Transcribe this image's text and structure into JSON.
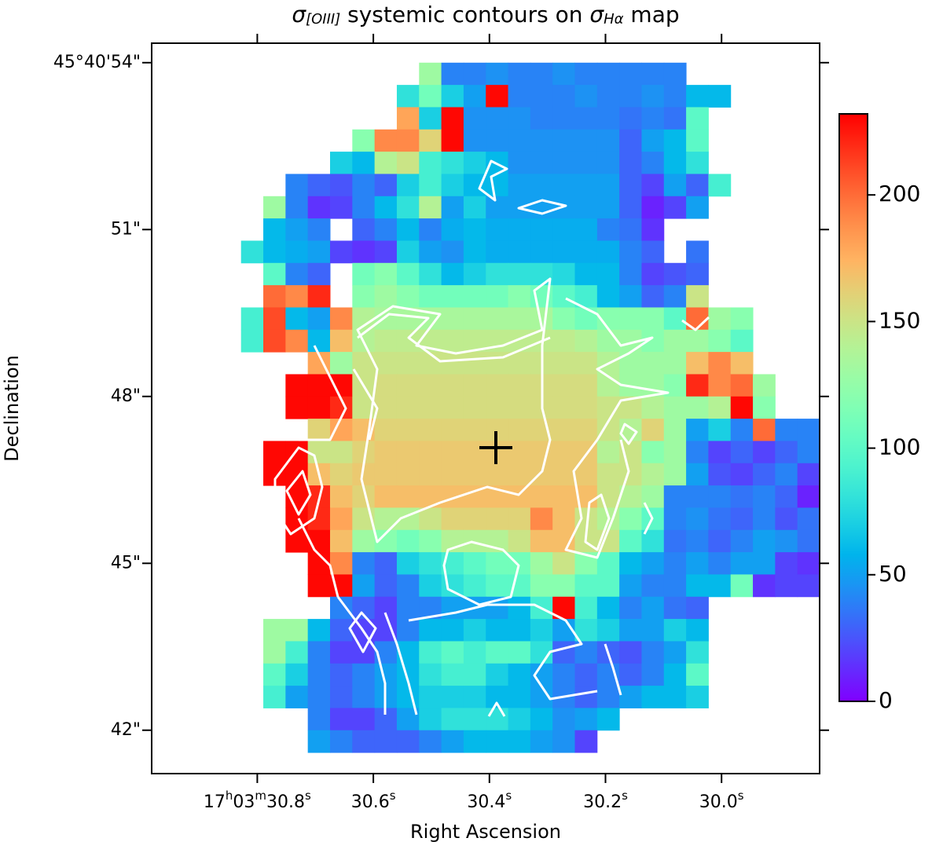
{
  "chart_data": {
    "type": "heatmap",
    "title": [
      "σ",
      "[OIII]",
      " systemic contours on ",
      "σ",
      "Hα",
      " map"
    ],
    "xlabel": "Right Ascension",
    "ylabel": "Declination",
    "xlim": [
      30.982,
      29.831
    ],
    "ylim": [
      41.22,
      54.35
    ],
    "xticks": [
      {
        "value": 30.8,
        "label": "17h03m30.8s"
      },
      {
        "value": 30.6,
        "label": "30.6s"
      },
      {
        "value": 30.4,
        "label": "30.4s"
      },
      {
        "value": 30.2,
        "label": "30.2s"
      },
      {
        "value": 30.0,
        "label": "30.0s"
      }
    ],
    "yticks": [
      {
        "value": 54,
        "label": "45°40'54\""
      },
      {
        "value": 51,
        "label": "51\""
      },
      {
        "value": 48,
        "label": "48\""
      },
      {
        "value": 45,
        "label": "45\""
      },
      {
        "value": 42,
        "label": "42\""
      }
    ],
    "extent": [
      30.828,
      29.831,
      41.6,
      54.0
    ],
    "colormap": "rainbow",
    "zlim": [
      0,
      232
    ],
    "zticks": [
      0,
      50,
      100,
      150,
      200
    ],
    "z": [
      [
        null,
        null,
        null,
        null,
        null,
        null,
        null,
        null,
        130,
        40,
        40,
        45,
        40,
        40,
        45,
        40,
        40,
        40,
        40,
        40,
        null,
        null,
        null,
        null,
        null,
        null
      ],
      [
        null,
        null,
        null,
        null,
        null,
        null,
        null,
        80,
        110,
        70,
        50,
        230,
        40,
        40,
        40,
        45,
        40,
        40,
        45,
        40,
        60,
        60,
        null,
        null,
        null,
        null
      ],
      [
        null,
        null,
        null,
        null,
        null,
        null,
        null,
        180,
        70,
        230,
        45,
        45,
        45,
        40,
        40,
        40,
        40,
        35,
        40,
        35,
        100,
        null,
        null,
        null,
        null,
        null
      ],
      [
        null,
        null,
        null,
        null,
        null,
        120,
        190,
        190,
        160,
        230,
        45,
        45,
        45,
        45,
        45,
        45,
        45,
        30,
        50,
        60,
        100,
        null,
        null,
        null,
        null,
        null
      ],
      [
        null,
        null,
        null,
        null,
        70,
        60,
        140,
        150,
        90,
        80,
        70,
        60,
        45,
        45,
        45,
        45,
        45,
        30,
        40,
        60,
        80,
        null,
        null,
        null,
        null,
        null
      ],
      [
        null,
        null,
        40,
        30,
        25,
        40,
        30,
        70,
        90,
        70,
        60,
        60,
        50,
        50,
        50,
        50,
        50,
        30,
        20,
        50,
        30,
        90,
        null,
        null,
        null,
        null
      ],
      [
        null,
        130,
        40,
        15,
        20,
        40,
        60,
        80,
        140,
        50,
        70,
        50,
        50,
        50,
        50,
        50,
        50,
        30,
        10,
        20,
        50,
        null,
        null,
        null,
        null,
        null
      ],
      [
        null,
        60,
        50,
        40,
        null,
        30,
        40,
        60,
        40,
        55,
        60,
        55,
        55,
        55,
        55,
        55,
        40,
        35,
        15,
        null,
        null,
        null,
        null,
        null,
        null,
        null
      ],
      [
        80,
        60,
        55,
        50,
        20,
        15,
        20,
        70,
        50,
        45,
        60,
        55,
        55,
        55,
        55,
        55,
        55,
        40,
        30,
        null,
        35,
        null,
        null,
        null,
        null,
        null
      ],
      [
        null,
        100,
        40,
        30,
        null,
        110,
        120,
        100,
        80,
        60,
        70,
        80,
        80,
        80,
        75,
        60,
        60,
        40,
        20,
        25,
        30,
        null,
        null,
        null,
        null,
        null
      ],
      [
        null,
        200,
        190,
        220,
        null,
        120,
        130,
        120,
        110,
        110,
        110,
        110,
        120,
        110,
        100,
        90,
        60,
        50,
        30,
        40,
        150,
        null,
        null,
        null,
        null,
        null
      ],
      [
        90,
        210,
        60,
        50,
        190,
        140,
        135,
        135,
        135,
        135,
        135,
        135,
        135,
        135,
        120,
        110,
        120,
        120,
        120,
        100,
        200,
        130,
        120,
        null,
        null,
        null
      ],
      [
        90,
        210,
        190,
        60,
        170,
        140,
        145,
        145,
        145,
        145,
        145,
        145,
        145,
        145,
        145,
        140,
        130,
        130,
        120,
        130,
        130,
        120,
        100,
        null,
        null,
        null
      ],
      [
        null,
        null,
        null,
        180,
        130,
        150,
        150,
        150,
        150,
        150,
        150,
        150,
        150,
        150,
        150,
        150,
        140,
        130,
        130,
        130,
        170,
        190,
        170,
        null,
        null,
        null
      ],
      [
        null,
        null,
        230,
        230,
        230,
        150,
        155,
        155,
        155,
        155,
        155,
        155,
        155,
        155,
        155,
        155,
        140,
        130,
        130,
        120,
        220,
        190,
        200,
        130,
        null,
        null
      ],
      [
        null,
        null,
        230,
        230,
        220,
        150,
        155,
        155,
        155,
        155,
        155,
        155,
        155,
        155,
        155,
        155,
        150,
        150,
        140,
        130,
        130,
        140,
        230,
        120,
        null,
        null
      ],
      [
        null,
        null,
        null,
        160,
        180,
        170,
        160,
        160,
        160,
        160,
        160,
        160,
        160,
        160,
        160,
        160,
        150,
        140,
        160,
        130,
        50,
        70,
        40,
        200,
        40,
        40
      ],
      [
        null,
        230,
        230,
        150,
        150,
        160,
        165,
        165,
        165,
        165,
        165,
        165,
        165,
        165,
        165,
        165,
        140,
        150,
        120,
        130,
        40,
        20,
        30,
        20,
        30,
        40
      ],
      [
        null,
        230,
        230,
        170,
        160,
        165,
        165,
        165,
        165,
        165,
        165,
        165,
        165,
        165,
        165,
        165,
        150,
        150,
        140,
        130,
        50,
        25,
        20,
        30,
        40,
        20
      ],
      [
        null,
        null,
        230,
        220,
        170,
        160,
        170,
        170,
        170,
        170,
        170,
        170,
        170,
        170,
        170,
        170,
        150,
        140,
        130,
        40,
        40,
        40,
        35,
        40,
        30,
        10
      ],
      [
        null,
        null,
        230,
        220,
        180,
        150,
        140,
        140,
        150,
        160,
        160,
        160,
        160,
        190,
        170,
        150,
        140,
        120,
        100,
        40,
        45,
        35,
        30,
        40,
        25,
        35
      ],
      [
        null,
        null,
        230,
        230,
        170,
        130,
        120,
        110,
        120,
        140,
        140,
        140,
        150,
        170,
        170,
        150,
        150,
        100,
        80,
        35,
        40,
        30,
        40,
        50,
        45,
        35
      ],
      [
        null,
        null,
        null,
        230,
        190,
        40,
        30,
        70,
        80,
        90,
        100,
        110,
        110,
        130,
        150,
        120,
        100,
        60,
        50,
        40,
        50,
        40,
        50,
        50,
        20,
        15
      ],
      [
        null,
        null,
        null,
        230,
        230,
        50,
        30,
        40,
        70,
        80,
        90,
        100,
        100,
        120,
        120,
        100,
        100,
        50,
        40,
        40,
        60,
        60,
        110,
        15,
        20,
        20
      ],
      [
        null,
        null,
        null,
        null,
        40,
        30,
        20,
        40,
        40,
        50,
        50,
        50,
        60,
        90,
        230,
        90,
        60,
        40,
        50,
        35,
        30,
        null,
        null,
        null,
        null,
        null
      ],
      [
        null,
        130,
        130,
        60,
        30,
        20,
        20,
        40,
        60,
        60,
        70,
        60,
        60,
        70,
        50,
        80,
        70,
        50,
        50,
        70,
        60,
        null,
        null,
        null,
        null,
        null
      ],
      [
        null,
        130,
        90,
        40,
        20,
        20,
        40,
        60,
        90,
        100,
        90,
        100,
        100,
        80,
        30,
        40,
        30,
        25,
        40,
        50,
        80,
        null,
        null,
        null,
        null,
        null
      ],
      [
        null,
        100,
        70,
        40,
        30,
        40,
        50,
        60,
        80,
        90,
        90,
        70,
        60,
        50,
        40,
        30,
        40,
        30,
        40,
        60,
        100,
        null,
        null,
        null,
        null,
        null
      ],
      [
        null,
        90,
        50,
        40,
        30,
        40,
        50,
        60,
        70,
        70,
        70,
        60,
        60,
        50,
        40,
        30,
        40,
        50,
        60,
        60,
        70,
        null,
        null,
        null,
        null,
        null
      ],
      [
        null,
        null,
        null,
        40,
        20,
        20,
        30,
        50,
        70,
        80,
        80,
        80,
        70,
        60,
        45,
        50,
        60,
        null,
        null,
        null,
        null,
        null,
        null,
        null,
        null,
        null
      ],
      [
        null,
        null,
        null,
        50,
        40,
        30,
        30,
        30,
        40,
        50,
        60,
        60,
        60,
        50,
        45,
        20,
        null,
        null,
        null,
        null,
        null,
        null,
        null,
        null,
        null,
        null
      ]
    ]
  }
}
